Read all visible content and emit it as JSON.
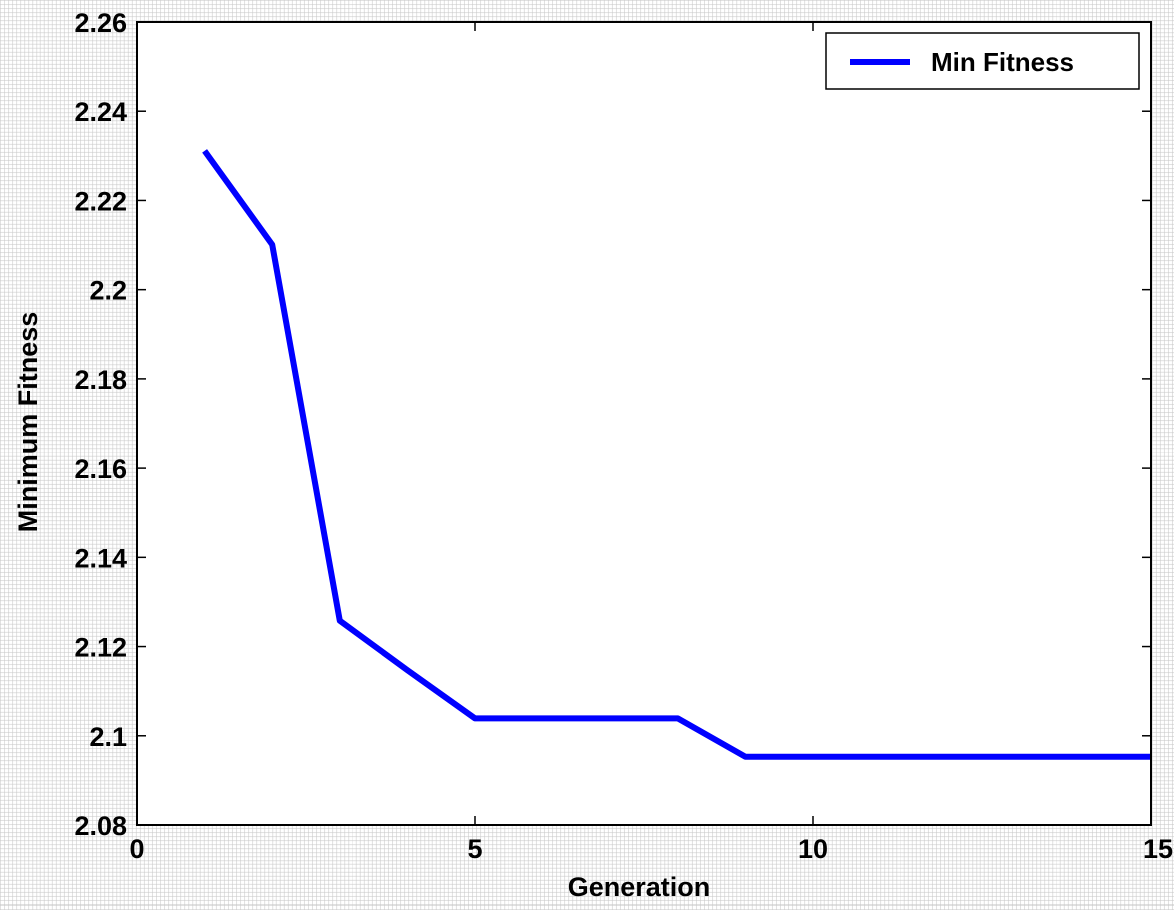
{
  "chart_data": {
    "type": "line",
    "title": "",
    "xlabel": "Generation",
    "ylabel": "Minimum Fitness",
    "xlim": [
      0,
      15
    ],
    "ylim": [
      2.08,
      2.26
    ],
    "xticks": [
      0,
      5,
      10,
      15
    ],
    "xtick_labels": [
      "0",
      "5",
      "10",
      "15"
    ],
    "yticks": [
      2.08,
      2.1,
      2.12,
      2.14,
      2.16,
      2.18,
      2.2,
      2.22,
      2.24,
      2.26
    ],
    "ytick_labels": [
      "2.08",
      "2.1",
      "2.12",
      "2.14",
      "2.16",
      "2.18",
      "2.2",
      "2.22",
      "2.24",
      "2.26"
    ],
    "grid": false,
    "legend_position": "top-right",
    "series": [
      {
        "name": "Min Fitness",
        "color": "#0000ff",
        "x": [
          1,
          2,
          3,
          4,
          5,
          6,
          7,
          8,
          9,
          10,
          11,
          12,
          13,
          14,
          15
        ],
        "y": [
          2.2311,
          2.2101,
          2.1258,
          2.1147,
          2.1039,
          2.1039,
          2.1039,
          2.1039,
          2.0953,
          2.0953,
          2.0953,
          2.0953,
          2.0953,
          2.0953,
          2.0953
        ]
      }
    ]
  }
}
